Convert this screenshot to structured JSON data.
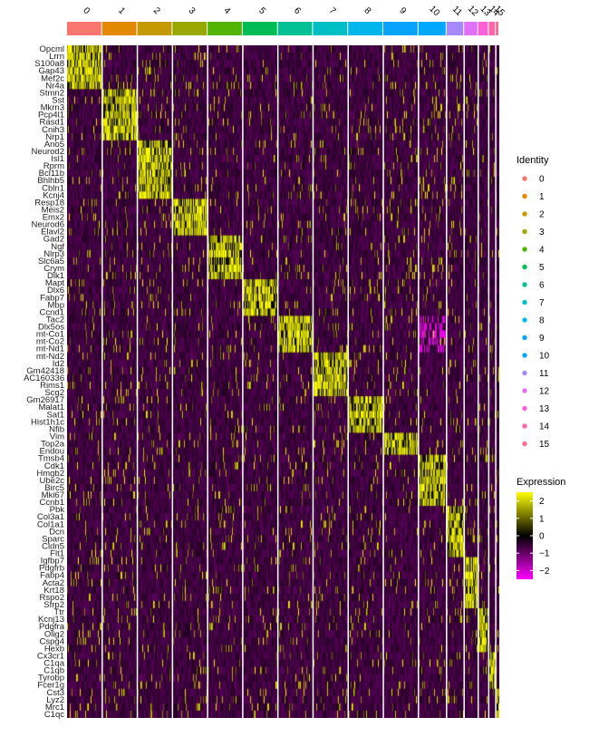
{
  "chart_data": {
    "type": "heatmap",
    "title": "",
    "xlabel": "",
    "ylabel": "",
    "cluster_labels": [
      "0",
      "1",
      "2",
      "3",
      "4",
      "5",
      "6",
      "7",
      "8",
      "9",
      "10",
      "11",
      "12",
      "13",
      "14",
      "15"
    ],
    "cluster_colors": [
      "#F8766D",
      "#E38900",
      "#C49A00",
      "#99A800",
      "#53B400",
      "#00BC56",
      "#00C094",
      "#00BFC4",
      "#00B6EB",
      "#06A4FF",
      "#00A9FF",
      "#A58AFF",
      "#DF70F8",
      "#FB61D7",
      "#FF66A8",
      "#FF6C91"
    ],
    "cluster_cell_weights": [
      10,
      10,
      10,
      10,
      10,
      10,
      10,
      10,
      10,
      10,
      8,
      5,
      4,
      3,
      2,
      1
    ],
    "genes": [
      "Opcml",
      "Lrrn",
      "S100a8",
      "Gap43",
      "Mef2c",
      "Nr4a",
      "Stmn2",
      "Sst",
      "Mkrn3",
      "Pcp4l1",
      "Rasd1",
      "Cnih3",
      "Nrp1",
      "Ano5",
      "Neurod2",
      "Isl1",
      "Rprm",
      "Bcl11b",
      "Bhlhb5",
      "Cbln1",
      "Kcnj4",
      "Resp18",
      "Meis2",
      "Emx2",
      "Neurod6",
      "Elavl2",
      "Gad2",
      "Ngf",
      "Nlrp3",
      "Slc6a5",
      "Crym",
      "Dlk1",
      "Mapt",
      "Dlx6",
      "Fabp7",
      "Mbp",
      "Ccnd1",
      "Tac2",
      "Dlx5os",
      "mt-Co1",
      "mt-Co2",
      "mt-Nd1",
      "mt-Nd2",
      "Id2",
      "Gm42418",
      "AC160336",
      "Rims1",
      "Scg2",
      "Gm26917",
      "Malat1",
      "Sat1",
      "Hist1h1c",
      "Nfib",
      "Vim",
      "Top2a",
      "Endou",
      "Tmsb4",
      "Cdk1",
      "Hmgb2",
      "Ube2c",
      "Birc5",
      "Mki67",
      "Ccnb1",
      "Pbk",
      "Col3a1",
      "Col1a1",
      "Dcn",
      "Sparc",
      "Cldn5",
      "Flt1",
      "Igfbp7",
      "Pdgfrb",
      "Fabp4",
      "Acta2",
      "Krt18",
      "Rspo2",
      "Sfrp2",
      "Ttr",
      "Kcnj13",
      "Pdgfra",
      "Olig2",
      "Cspg4",
      "Hexb",
      "Cx3cr1",
      "C1qa",
      "C1qb",
      "Tyrobp",
      "Fcer1g",
      "Cst3",
      "Lyz2",
      "Mrc1",
      "C1qc"
    ],
    "gene_cluster": [
      0,
      0,
      0,
      0,
      0,
      0,
      1,
      1,
      1,
      1,
      1,
      1,
      1,
      2,
      2,
      2,
      2,
      2,
      2,
      2,
      2,
      3,
      3,
      3,
      3,
      3,
      4,
      4,
      4,
      4,
      4,
      4,
      5,
      5,
      5,
      5,
      5,
      6,
      6,
      6,
      6,
      6,
      7,
      7,
      7,
      7,
      7,
      7,
      8,
      8,
      8,
      8,
      8,
      9,
      9,
      9,
      10,
      10,
      10,
      10,
      10,
      10,
      10,
      11,
      11,
      11,
      11,
      11,
      11,
      11,
      12,
      12,
      12,
      12,
      12,
      12,
      12,
      13,
      13,
      13,
      13,
      13,
      13,
      14,
      14,
      14,
      14,
      14,
      15,
      15,
      15,
      15
    ],
    "color_scale": {
      "title": "Expression",
      "min": -2.5,
      "max": 2.5,
      "stops": [
        "#FF00FF",
        "#000000",
        "#FFFF00"
      ],
      "ticks": [
        2,
        1,
        0,
        -1,
        -2
      ],
      "tick_labels": [
        "2",
        "1",
        "0",
        "−1",
        "−2"
      ]
    },
    "legend": {
      "title": "Identity",
      "position": "right"
    }
  }
}
